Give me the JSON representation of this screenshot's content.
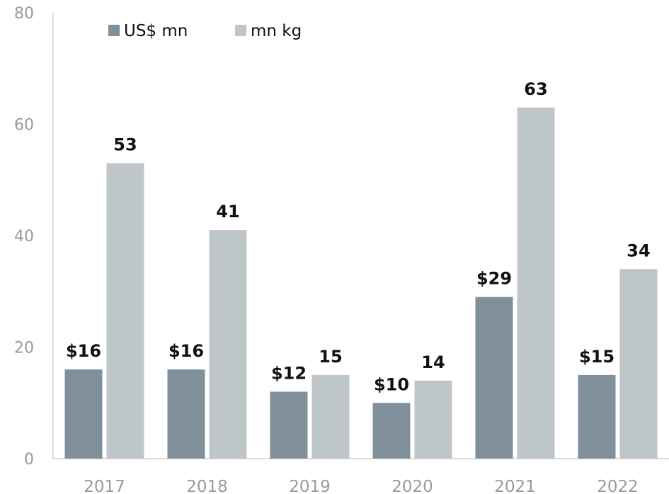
{
  "chart_data": {
    "type": "bar",
    "categories": [
      "2017",
      "2018",
      "2019",
      "2020",
      "2021",
      "2022"
    ],
    "series": [
      {
        "name": "US$ mn",
        "values": [
          16,
          16,
          12,
          10,
          29,
          15
        ],
        "labels": [
          "$16",
          "$16",
          "$12",
          "$10",
          "$29",
          "$15"
        ],
        "color": "#7f909b"
      },
      {
        "name": "mn kg",
        "values": [
          53,
          41,
          15,
          14,
          63,
          34
        ],
        "labels": [
          "53",
          "41",
          "15",
          "14",
          "63",
          "34"
        ],
        "color": "#bec6c9"
      }
    ],
    "ylim": [
      0,
      80
    ],
    "yticks": [
      "0",
      "20",
      "40",
      "60",
      "80"
    ],
    "legend_position": "top-left",
    "grid": false
  }
}
